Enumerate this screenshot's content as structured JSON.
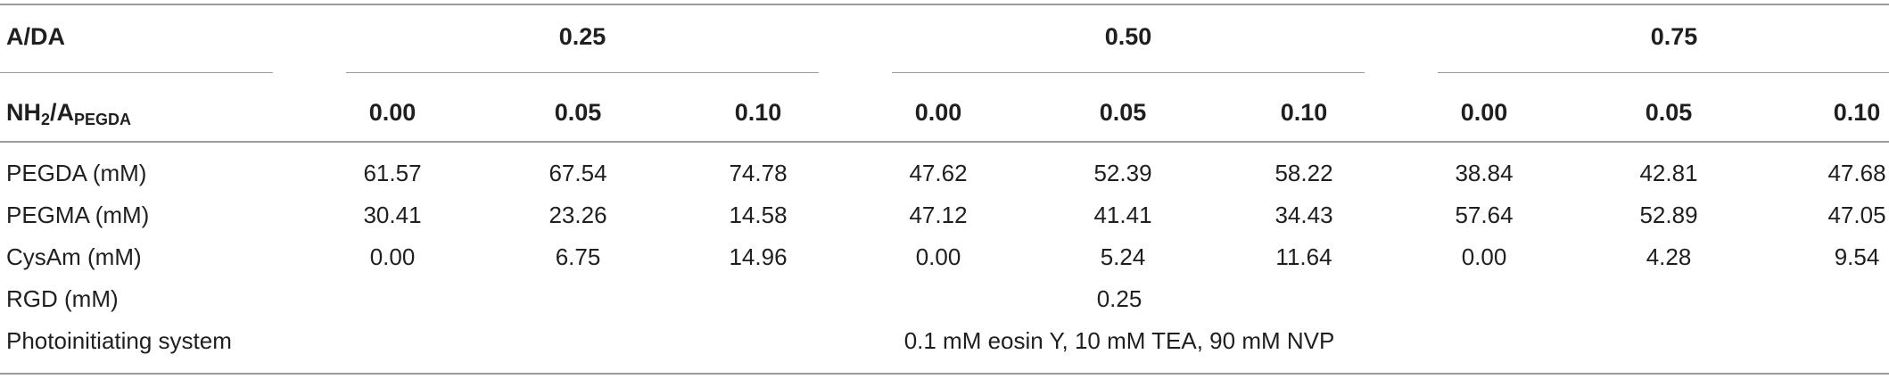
{
  "table": {
    "header1": {
      "label": "A/DA",
      "groups": [
        "0.25",
        "0.50",
        "0.75"
      ]
    },
    "header2": {
      "label_main": "NH",
      "label_sub1": "2",
      "label_mid": "/A",
      "label_sub2": "PEGDA",
      "values": [
        "0.00",
        "0.05",
        "0.10",
        "0.00",
        "0.05",
        "0.10",
        "0.00",
        "0.05",
        "0.10"
      ]
    },
    "rows": [
      {
        "label": "PEGDA (mM)",
        "values": [
          "61.57",
          "67.54",
          "74.78",
          "47.62",
          "52.39",
          "58.22",
          "38.84",
          "42.81",
          "47.68"
        ]
      },
      {
        "label": "PEGMA (mM)",
        "values": [
          "30.41",
          "23.26",
          "14.58",
          "47.12",
          "41.41",
          "34.43",
          "57.64",
          "52.89",
          "47.05"
        ]
      },
      {
        "label": "CysAm (mM)",
        "values": [
          "0.00",
          "6.75",
          "14.96",
          "0.00",
          "5.24",
          "11.64",
          "0.00",
          "4.28",
          "9.54"
        ]
      }
    ],
    "rgd": {
      "label": "RGD (mM)",
      "value": "0.25"
    },
    "photo": {
      "label": "Photoinitiating system",
      "value": "0.1 mM eosin Y, 10 mM TEA, 90 mM NVP"
    }
  }
}
